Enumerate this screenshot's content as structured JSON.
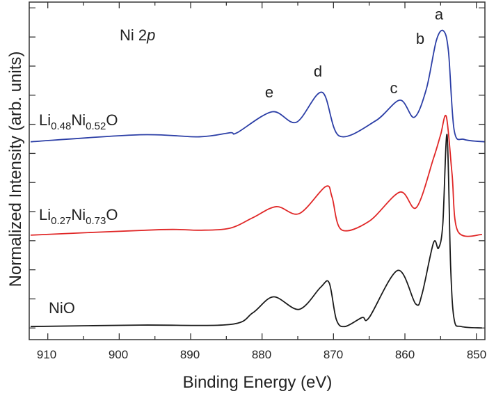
{
  "chart_data": {
    "type": "line",
    "title": "",
    "xlabel": "Binding Energy (eV)",
    "ylabel": "Normalized Intensity (arb. units)",
    "xlim": [
      912.6,
      848.8
    ],
    "ylim": [
      -0.4,
      11.2
    ],
    "x_reversed": true,
    "x_ticks": [
      910,
      900,
      890,
      880,
      870,
      860,
      850
    ],
    "x_tick_labels": [
      "910",
      "900",
      "890",
      "880",
      "870",
      "860",
      "850"
    ],
    "x_minor_ticks": [
      905,
      895,
      885,
      875,
      865,
      855
    ],
    "y_ticks": [
      0,
      1,
      2,
      3,
      4,
      5,
      6,
      7,
      8,
      9,
      10,
      11
    ],
    "y_tick_labels_shown": false,
    "grid": false,
    "annotation": {
      "text": "Ni 2",
      "italic": "p"
    },
    "peak_labels": [
      {
        "text": "a",
        "x": 854.6
      },
      {
        "text": "b",
        "x": 857.6
      },
      {
        "text": "c",
        "x": 861.0
      },
      {
        "text": "d",
        "x": 871.6
      },
      {
        "text": "e",
        "x": 878.4
      }
    ],
    "series": [
      {
        "name": "Li0.48Ni0.52O",
        "label": {
          "a": "Li",
          "s1": "0.48",
          "b": "Ni",
          "s2": "0.52",
          "c": "O"
        },
        "color": "#2b3ea6",
        "x": [
          912.4,
          897.1,
          888.8,
          884.5,
          883.5,
          878.6,
          875.2,
          871.6,
          869.2,
          864.1,
          860.7,
          858.7,
          857.0,
          855.6,
          854.6,
          853.9,
          853.1,
          851.7,
          848.8
        ],
        "y": [
          6.4,
          6.64,
          6.57,
          6.71,
          6.71,
          7.43,
          7.07,
          8.1,
          6.6,
          7.12,
          7.83,
          7.24,
          8.21,
          9.88,
          10.21,
          9.5,
          6.79,
          6.48,
          6.4
        ]
      },
      {
        "name": "Li0.27Ni0.73O",
        "label": {
          "a": "Li",
          "s1": "0.27",
          "b": "Ni",
          "s2": "0.73",
          "c": "O"
        },
        "color": "#e02626",
        "x": [
          912.4,
          894.2,
          888.8,
          884.5,
          881.3,
          878.0,
          874.8,
          871.1,
          870.2,
          868.9,
          865.0,
          860.7,
          858.4,
          856.0,
          855.0,
          854.2,
          853.4,
          852.6,
          849.2
        ],
        "y": [
          3.19,
          3.38,
          3.36,
          3.43,
          3.79,
          4.17,
          3.93,
          4.86,
          4.5,
          3.38,
          3.67,
          4.67,
          4.14,
          5.83,
          6.64,
          7.26,
          5.29,
          3.33,
          3.21
        ]
      },
      {
        "name": "NiO",
        "label": {
          "a": "NiO",
          "s1": "",
          "b": "",
          "s2": "",
          "c": ""
        },
        "color": "#1a1a1a",
        "x": [
          912.4,
          897.1,
          884.5,
          881.3,
          878.4,
          874.8,
          871.8,
          870.6,
          869.6,
          868.4,
          866.0,
          865.0,
          861.0,
          858.5,
          857.6,
          856.0,
          855.3,
          854.7,
          854.1,
          853.6,
          853.1,
          852.1,
          849.2
        ],
        "y": [
          0.05,
          0.1,
          0.12,
          0.52,
          1.07,
          0.64,
          1.4,
          1.55,
          0.29,
          0.05,
          0.36,
          0.36,
          1.98,
          0.83,
          1.17,
          2.93,
          2.74,
          3.55,
          6.64,
          2.12,
          0.29,
          0.05,
          0.0
        ]
      }
    ]
  }
}
